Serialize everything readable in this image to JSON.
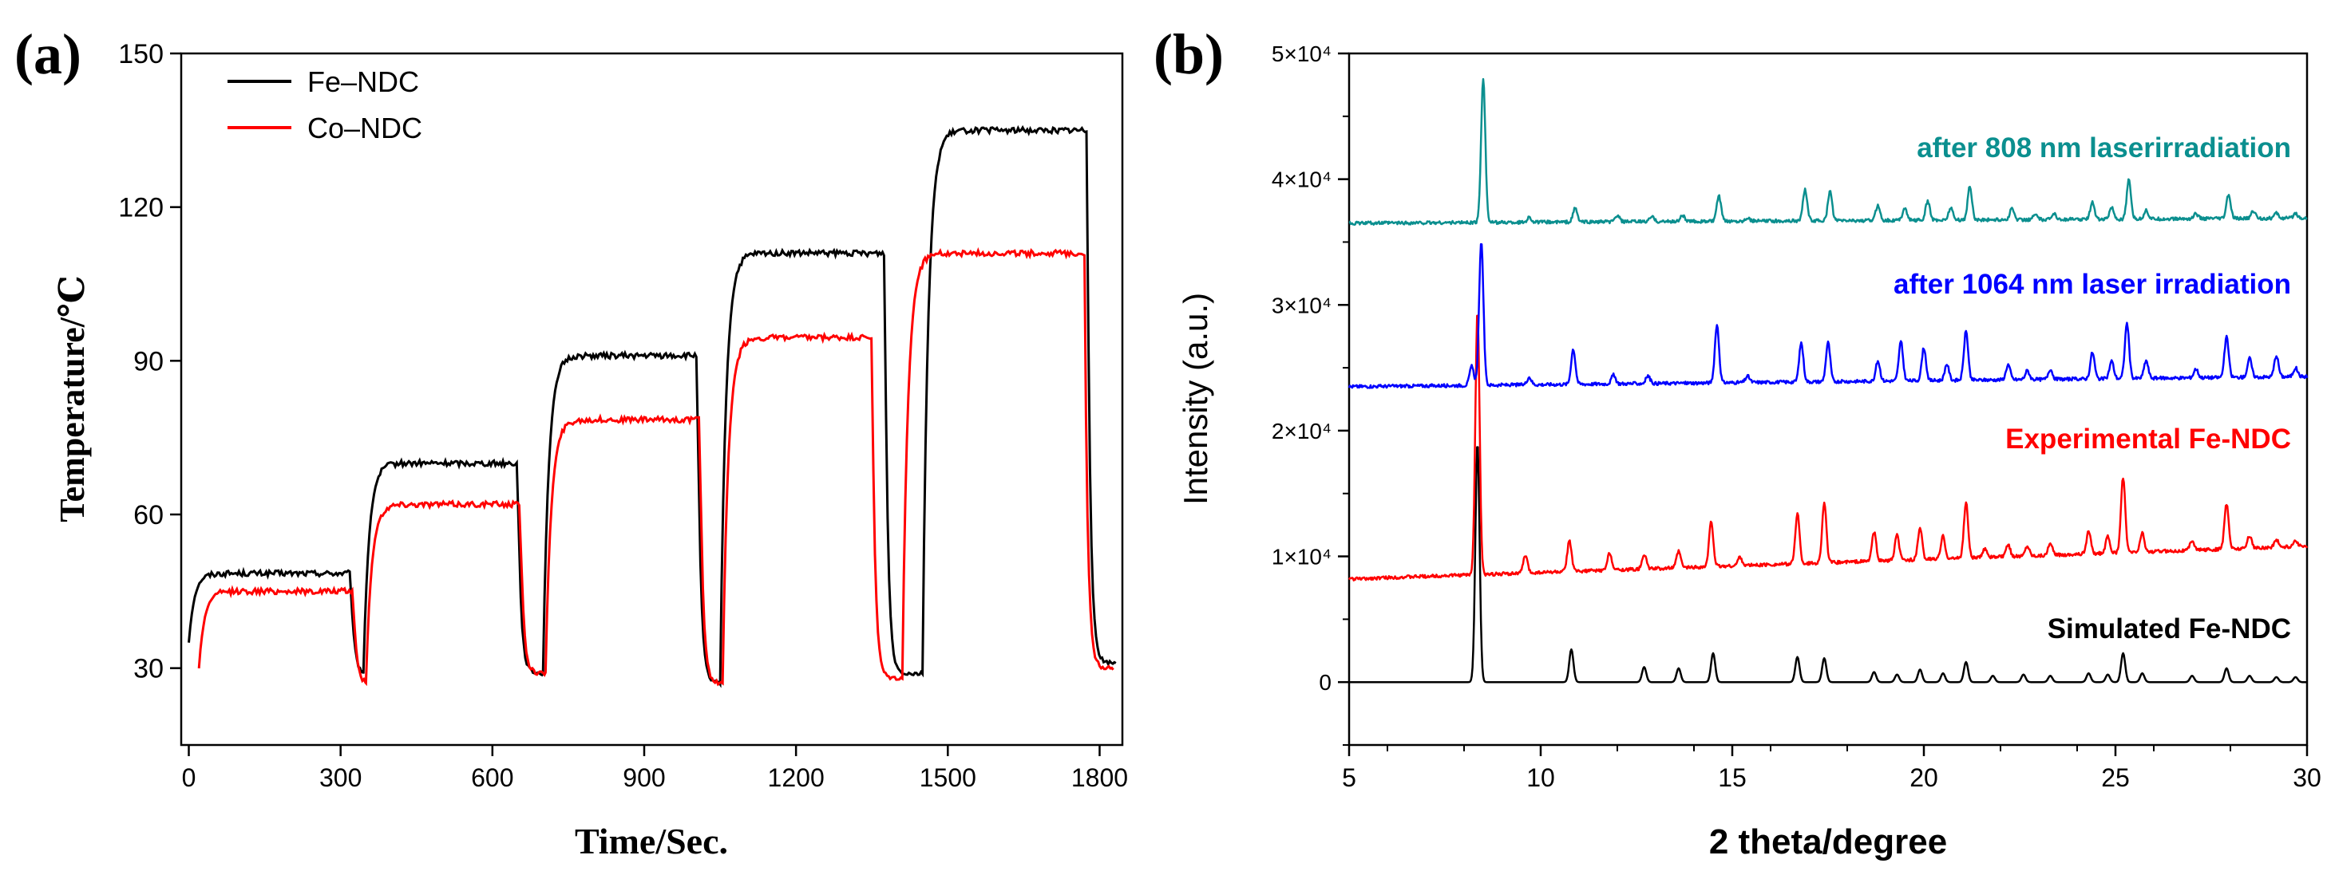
{
  "colors": {
    "fe": "#000000",
    "co": "#ff0000",
    "teal": "#0b8f8f",
    "blue": "#0000ff",
    "red": "#ff0000",
    "black": "#000000"
  },
  "chart_data": [
    {
      "type": "line",
      "panel_label": "(a)",
      "title": "",
      "xlabel": "Time/Sec.",
      "ylabel": "Temperature/℃",
      "xlim": [
        -15,
        1845
      ],
      "ylim": [
        15,
        150
      ],
      "x_ticks": [
        0,
        300,
        600,
        900,
        1200,
        1500,
        1800
      ],
      "y_ticks": [
        30,
        60,
        90,
        120,
        150
      ],
      "legend_position": "top-left",
      "series": [
        {
          "name": "Fe–NDC",
          "color": "#000000",
          "segments": [
            {
              "t_on": 0,
              "t_off": 320,
              "from": 35,
              "to": 48.5
            },
            {
              "t_on": 345,
              "t_off": 650,
              "from": 29,
              "to": 70
            },
            {
              "t_on": 700,
              "t_off": 1005,
              "from": 29,
              "to": 91
            },
            {
              "t_on": 1050,
              "t_off": 1375,
              "from": 27,
              "to": 111
            },
            {
              "t_on": 1450,
              "t_off": 1775,
              "from": 29,
              "to": 135
            }
          ],
          "end": 31
        },
        {
          "name": "Co–NDC",
          "color": "#ff0000",
          "segments": [
            {
              "t_on": 20,
              "t_off": 325,
              "from": 30,
              "to": 45
            },
            {
              "t_on": 350,
              "t_off": 655,
              "from": 27,
              "to": 62
            },
            {
              "t_on": 705,
              "t_off": 1010,
              "from": 29,
              "to": 78.5
            },
            {
              "t_on": 1055,
              "t_off": 1350,
              "from": 27,
              "to": 94.5
            },
            {
              "t_on": 1410,
              "t_off": 1770,
              "from": 28,
              "to": 111
            }
          ],
          "end": 30
        }
      ]
    },
    {
      "type": "line",
      "panel_label": "(b)",
      "title": "",
      "xlabel": "2 theta/degree",
      "ylabel": "Intensity (a.u.)",
      "xlim": [
        5,
        30
      ],
      "ylim": [
        -5000,
        50000
      ],
      "x_ticks": [
        5,
        10,
        15,
        20,
        25,
        30
      ],
      "y_tick_labels": [
        {
          "value": 0,
          "label": "0"
        },
        {
          "value": 10000,
          "label": "1×10⁴"
        },
        {
          "value": 20000,
          "label": "2×10⁴"
        },
        {
          "value": 30000,
          "label": "3×10⁴"
        },
        {
          "value": 40000,
          "label": "4×10⁴"
        },
        {
          "value": 50000,
          "label": "5×10⁴"
        }
      ],
      "series": [
        {
          "name": "Simulated Fe-NDC",
          "color": "#000000",
          "baseline": 0,
          "tilt": 0,
          "peaks": [
            [
              8.35,
              19000
            ],
            [
              10.8,
              2600
            ],
            [
              12.7,
              1200
            ],
            [
              13.6,
              1100
            ],
            [
              14.5,
              2300
            ],
            [
              16.7,
              2000
            ],
            [
              17.4,
              1900
            ],
            [
              18.7,
              800
            ],
            [
              19.3,
              600
            ],
            [
              19.9,
              1000
            ],
            [
              20.5,
              700
            ],
            [
              21.1,
              1600
            ],
            [
              21.8,
              500
            ],
            [
              22.6,
              600
            ],
            [
              23.3,
              500
            ],
            [
              24.3,
              700
            ],
            [
              24.8,
              600
            ],
            [
              25.2,
              2300
            ],
            [
              25.7,
              700
            ],
            [
              27.0,
              500
            ],
            [
              27.9,
              1100
            ],
            [
              28.5,
              500
            ],
            [
              29.2,
              400
            ],
            [
              29.7,
              400
            ]
          ]
        },
        {
          "name": "Experimental Fe-NDC",
          "color": "#ff0000",
          "baseline": 8200,
          "tilt": 2600,
          "peaks": [
            [
              8.35,
              21000
            ],
            [
              9.6,
              1400
            ],
            [
              10.75,
              2500
            ],
            [
              11.8,
              1400
            ],
            [
              12.7,
              1200
            ],
            [
              13.6,
              1300
            ],
            [
              14.45,
              3600
            ],
            [
              15.2,
              700
            ],
            [
              16.7,
              4000
            ],
            [
              17.4,
              4800
            ],
            [
              18.7,
              2300
            ],
            [
              19.3,
              2000
            ],
            [
              19.9,
              2500
            ],
            [
              20.5,
              1800
            ],
            [
              21.1,
              4400
            ],
            [
              21.6,
              700
            ],
            [
              22.2,
              900
            ],
            [
              22.7,
              800
            ],
            [
              23.3,
              900
            ],
            [
              24.3,
              1800
            ],
            [
              24.8,
              1300
            ],
            [
              25.2,
              6000
            ],
            [
              25.7,
              1500
            ],
            [
              27.0,
              800
            ],
            [
              27.9,
              3600
            ],
            [
              28.5,
              1000
            ],
            [
              29.2,
              600
            ],
            [
              29.7,
              500
            ]
          ]
        },
        {
          "name": "after 1064 nm laser irradiation",
          "color": "#0000ff",
          "baseline": 23500,
          "tilt": 800,
          "peaks": [
            [
              8.2,
              1500
            ],
            [
              8.45,
              11500
            ],
            [
              9.7,
              600
            ],
            [
              10.85,
              2800
            ],
            [
              11.9,
              700
            ],
            [
              12.8,
              600
            ],
            [
              14.6,
              4600
            ],
            [
              15.4,
              500
            ],
            [
              16.8,
              3100
            ],
            [
              17.5,
              3100
            ],
            [
              18.8,
              1600
            ],
            [
              19.4,
              3100
            ],
            [
              20.0,
              2600
            ],
            [
              20.6,
              1300
            ],
            [
              21.1,
              3900
            ],
            [
              22.2,
              1200
            ],
            [
              22.7,
              700
            ],
            [
              23.3,
              800
            ],
            [
              24.4,
              2100
            ],
            [
              24.9,
              1400
            ],
            [
              25.3,
              4400
            ],
            [
              25.8,
              1400
            ],
            [
              27.1,
              700
            ],
            [
              27.9,
              3200
            ],
            [
              28.5,
              1500
            ],
            [
              29.2,
              1700
            ],
            [
              29.7,
              700
            ]
          ]
        },
        {
          "name": "after 808 nm laserirradiation",
          "color": "#0b8f8f",
          "baseline": 36500,
          "tilt": 400,
          "peaks": [
            [
              8.5,
              11500
            ],
            [
              9.7,
              400
            ],
            [
              10.9,
              1100
            ],
            [
              12.0,
              500
            ],
            [
              12.9,
              400
            ],
            [
              13.7,
              500
            ],
            [
              14.65,
              2000
            ],
            [
              15.4,
              300
            ],
            [
              16.9,
              2500
            ],
            [
              17.55,
              2300
            ],
            [
              18.8,
              1200
            ],
            [
              19.5,
              1000
            ],
            [
              20.1,
              1500
            ],
            [
              20.7,
              1000
            ],
            [
              21.2,
              2700
            ],
            [
              22.3,
              900
            ],
            [
              22.9,
              400
            ],
            [
              23.4,
              500
            ],
            [
              24.4,
              1400
            ],
            [
              24.9,
              900
            ],
            [
              25.35,
              3100
            ],
            [
              25.8,
              700
            ],
            [
              27.1,
              400
            ],
            [
              27.95,
              1900
            ],
            [
              28.6,
              600
            ],
            [
              29.2,
              400
            ],
            [
              29.7,
              400
            ]
          ]
        }
      ]
    }
  ]
}
